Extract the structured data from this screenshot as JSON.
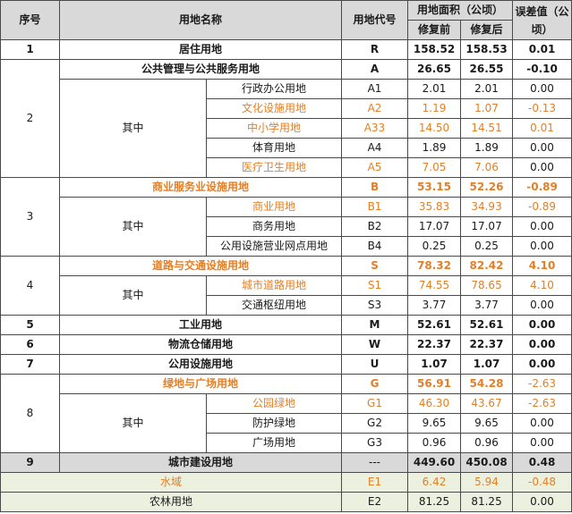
{
  "header": {
    "seq": "序号",
    "name": "用地名称",
    "code": "用地代号",
    "area": "用地面积（公顷）",
    "before": "修复前",
    "after": "修复后",
    "diff": "误差值（公顷）"
  },
  "rows": {
    "r1": {
      "seq": "1",
      "name": "居住用地",
      "code": "R",
      "before": "158.52",
      "after": "158.53",
      "diff": "0.01"
    },
    "r2": {
      "seq": "2",
      "name": "公共管理与公共服务用地",
      "code": "A",
      "before": "26.65",
      "after": "26.55",
      "diff": "-0.10",
      "sub_label": "其中",
      "subs": [
        {
          "name": "行政办公用地",
          "code": "A1",
          "before": "2.01",
          "after": "2.01",
          "diff": "0.00"
        },
        {
          "name": "文化设施用地",
          "code": "A2",
          "before": "1.19",
          "after": "1.07",
          "diff": "-0.13"
        },
        {
          "name": "中小学用地",
          "code": "A33",
          "before": "14.50",
          "after": "14.51",
          "diff": "0.01"
        },
        {
          "name": "体育用地",
          "code": "A4",
          "before": "1.89",
          "after": "1.89",
          "diff": "0.00"
        },
        {
          "name": "医疗卫生用地",
          "code": "A5",
          "before": "7.05",
          "after": "7.06",
          "diff": "0.00"
        }
      ]
    },
    "r3": {
      "seq": "3",
      "name": "商业服务业设施用地",
      "code": "B",
      "before": "53.15",
      "after": "52.26",
      "diff": "-0.89",
      "sub_label": "其中",
      "subs": [
        {
          "name": "商业用地",
          "code": "B1",
          "before": "35.83",
          "after": "34.93",
          "diff": "-0.89"
        },
        {
          "name": "商务用地",
          "code": "B2",
          "before": "17.07",
          "after": "17.07",
          "diff": "0.00"
        },
        {
          "name": "公用设施营业网点用地",
          "code": "B4",
          "before": "0.25",
          "after": "0.25",
          "diff": "0.00"
        }
      ]
    },
    "r4": {
      "seq": "4",
      "name": "道路与交通设施用地",
      "code": "S",
      "before": "78.32",
      "after": "82.42",
      "diff": "4.10",
      "sub_label": "其中",
      "subs": [
        {
          "name": "城市道路用地",
          "code": "S1",
          "before": "74.55",
          "after": "78.65",
          "diff": "4.10"
        },
        {
          "name": "交通枢纽用地",
          "code": "S3",
          "before": "3.77",
          "after": "3.77",
          "diff": "0.00"
        }
      ]
    },
    "r5": {
      "seq": "5",
      "name": "工业用地",
      "code": "M",
      "before": "52.61",
      "after": "52.61",
      "diff": "0.00"
    },
    "r6": {
      "seq": "6",
      "name": "物流仓储用地",
      "code": "W",
      "before": "22.37",
      "after": "22.37",
      "diff": "0.00"
    },
    "r7": {
      "seq": "7",
      "name": "公用设施用地",
      "code": "U",
      "before": "1.07",
      "after": "1.07",
      "diff": "0.00"
    },
    "r8": {
      "seq": "8",
      "name": "绿地与广场用地",
      "code": "G",
      "before": "56.91",
      "after": "54.28",
      "diff": "-2.63",
      "sub_label": "其中",
      "subs": [
        {
          "name": "公园绿地",
          "code": "G1",
          "before": "46.30",
          "after": "43.67",
          "diff": "-2.63"
        },
        {
          "name": "防护绿地",
          "code": "G2",
          "before": "9.65",
          "after": "9.65",
          "diff": "0.00"
        },
        {
          "name": "广场用地",
          "code": "G3",
          "before": "0.96",
          "after": "0.96",
          "diff": "0.00"
        }
      ]
    },
    "r9": {
      "seq": "9",
      "name": "城市建设用地",
      "code": "---",
      "before": "449.60",
      "after": "450.08",
      "diff": "0.48"
    },
    "water": {
      "name": "水域",
      "code": "E1",
      "before": "6.42",
      "after": "5.94",
      "diff": "-0.48"
    },
    "farm": {
      "name": "农林用地",
      "code": "E2",
      "before": "81.25",
      "after": "81.25",
      "diff": "0.00"
    }
  },
  "colors": {
    "header_bg": "#d9d9d9",
    "highlight_text": "#e37f26",
    "row_green": "#ebf1de"
  }
}
